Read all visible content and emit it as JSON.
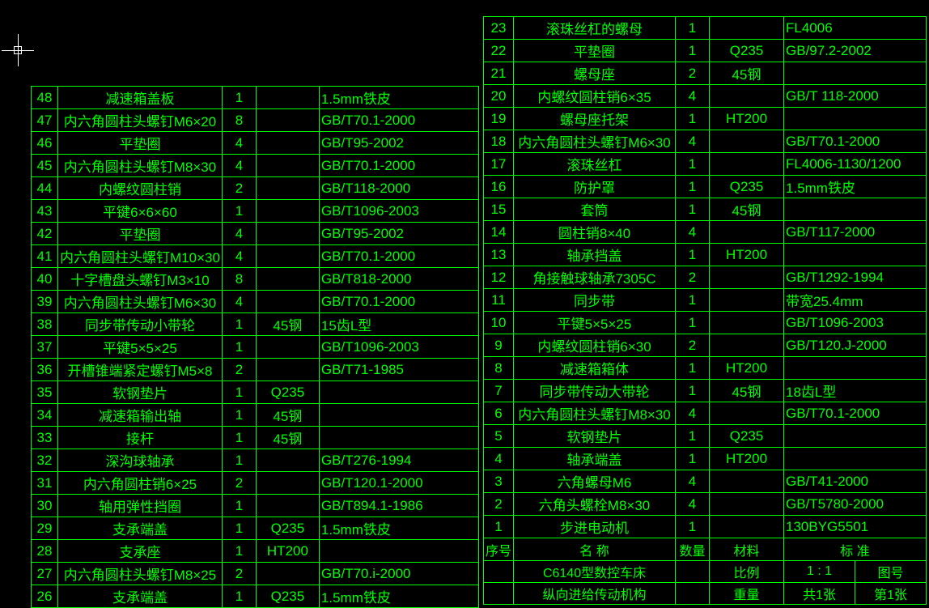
{
  "colors": {
    "background": "#000000",
    "foreground": "#00ff00",
    "crosshair": "#ffffff"
  },
  "leftTable": {
    "columns": [
      "idx",
      "name",
      "qty",
      "material",
      "standard"
    ],
    "rows": [
      {
        "idx": "48",
        "name": "减速箱盖板",
        "qty": "1",
        "mat": "",
        "std": "1.5mm铁皮"
      },
      {
        "idx": "47",
        "name": "内六角圆柱头螺钉M6×20",
        "qty": "8",
        "mat": "",
        "std": "GB/T70.1-2000"
      },
      {
        "idx": "46",
        "name": "平垫圈",
        "qty": "4",
        "mat": "",
        "std": "GB/T95-2002"
      },
      {
        "idx": "45",
        "name": "内六角圆柱头螺钉M8×30",
        "qty": "4",
        "mat": "",
        "std": "GB/T70.1-2000"
      },
      {
        "idx": "44",
        "name": "内螺纹圆柱销",
        "qty": "2",
        "mat": "",
        "std": "GB/T118-2000"
      },
      {
        "idx": "43",
        "name": "平键6×6×60",
        "qty": "1",
        "mat": "",
        "std": "GB/T1096-2003"
      },
      {
        "idx": "42",
        "name": "平垫圈",
        "qty": "4",
        "mat": "",
        "std": "GB/T95-2002"
      },
      {
        "idx": "41",
        "name": "内六角圆柱头螺钉M10×30",
        "qty": "4",
        "mat": "",
        "std": "GB/T70.1-2000"
      },
      {
        "idx": "40",
        "name": "十字槽盘头螺钉M3×10",
        "qty": "8",
        "mat": "",
        "std": "GB/T818-2000"
      },
      {
        "idx": "39",
        "name": "内六角圆柱头螺钉M6×30",
        "qty": "4",
        "mat": "",
        "std": "GB/T70.1-2000"
      },
      {
        "idx": "38",
        "name": "同步带传动小带轮",
        "qty": "1",
        "mat": "45钢",
        "std": "15齿L型"
      },
      {
        "idx": "37",
        "name": "平键5×5×25",
        "qty": "1",
        "mat": "",
        "std": "GB/T1096-2003"
      },
      {
        "idx": "36",
        "name": "开槽锥端紧定螺钉M5×8",
        "qty": "2",
        "mat": "",
        "std": "GB/T71-1985"
      },
      {
        "idx": "35",
        "name": "软钢垫片",
        "qty": "1",
        "mat": "Q235",
        "std": ""
      },
      {
        "idx": "34",
        "name": "减速箱输出轴",
        "qty": "1",
        "mat": "45钢",
        "std": ""
      },
      {
        "idx": "33",
        "name": "接杆",
        "qty": "1",
        "mat": "45钢",
        "std": ""
      },
      {
        "idx": "32",
        "name": "深沟球轴承",
        "qty": "1",
        "mat": "",
        "std": "GB/T276-1994"
      },
      {
        "idx": "31",
        "name": "内六角圆柱销6×25",
        "qty": "2",
        "mat": "",
        "std": "GB/T120.1-2000"
      },
      {
        "idx": "30",
        "name": "轴用弹性挡圈",
        "qty": "1",
        "mat": "",
        "std": "GB/T894.1-1986"
      },
      {
        "idx": "29",
        "name": "支承端盖",
        "qty": "1",
        "mat": "Q235",
        "std": "1.5mm铁皮"
      },
      {
        "idx": "28",
        "name": "支承座",
        "qty": "1",
        "mat": "HT200",
        "std": ""
      },
      {
        "idx": "27",
        "name": "内六角圆柱头螺钉M8×25",
        "qty": "2",
        "mat": "",
        "std": "GB/T70.i-2000"
      },
      {
        "idx": "26",
        "name": "支承端盖",
        "qty": "1",
        "mat": "Q235",
        "std": "1.5mm铁皮"
      }
    ]
  },
  "rightTable": {
    "columns": [
      "idx",
      "name",
      "qty",
      "material",
      "standard"
    ],
    "rows": [
      {
        "idx": "23",
        "name": "滚珠丝杠的螺母",
        "qty": "1",
        "mat": "",
        "std": "FL4006"
      },
      {
        "idx": "22",
        "name": "平垫圈",
        "qty": "1",
        "mat": "Q235",
        "std": "GB/97.2-2002"
      },
      {
        "idx": "21",
        "name": "螺母座",
        "qty": "2",
        "mat": "45钢",
        "std": ""
      },
      {
        "idx": "20",
        "name": "内螺纹圆柱销6×35",
        "qty": "4",
        "mat": "",
        "std": "GB/T 118-2000"
      },
      {
        "idx": "19",
        "name": "螺母座托架",
        "qty": "1",
        "mat": "HT200",
        "std": ""
      },
      {
        "idx": "18",
        "name": "内六角圆柱头螺钉M6×30",
        "qty": "4",
        "mat": "",
        "std": "GB/T70.1-2000"
      },
      {
        "idx": "17",
        "name": "滚珠丝杠",
        "qty": "1",
        "mat": "",
        "std": "FL4006-1130/1200"
      },
      {
        "idx": "16",
        "name": "防护罩",
        "qty": "1",
        "mat": "Q235",
        "std": "1.5mm铁皮"
      },
      {
        "idx": "15",
        "name": "套筒",
        "qty": "1",
        "mat": "45钢",
        "std": ""
      },
      {
        "idx": "14",
        "name": "圆柱销8×40",
        "qty": "4",
        "mat": "",
        "std": "GB/T117-2000"
      },
      {
        "idx": "13",
        "name": "轴承挡盖",
        "qty": "1",
        "mat": "HT200",
        "std": ""
      },
      {
        "idx": "12",
        "name": "角接触球轴承7305C",
        "qty": "2",
        "mat": "",
        "std": "GB/T1292-1994"
      },
      {
        "idx": "11",
        "name": "同步带",
        "qty": "1",
        "mat": "",
        "std": "带宽25.4mm"
      },
      {
        "idx": "10",
        "name": "平键5×5×25",
        "qty": "1",
        "mat": "",
        "std": "GB/T1096-2003"
      },
      {
        "idx": "9",
        "name": "内螺纹圆柱销6×30",
        "qty": "2",
        "mat": "",
        "std": "GB/T120.J-2000"
      },
      {
        "idx": "8",
        "name": "减速箱箱体",
        "qty": "1",
        "mat": "HT200",
        "std": ""
      },
      {
        "idx": "7",
        "name": "同步带传动大带轮",
        "qty": "1",
        "mat": "45钢",
        "std": "18齿L型"
      },
      {
        "idx": "6",
        "name": "内六角圆柱头螺钉M8×30",
        "qty": "4",
        "mat": "",
        "std": "GB/T70.1-2000"
      },
      {
        "idx": "5",
        "name": "软钢垫片",
        "qty": "1",
        "mat": "Q235",
        "std": ""
      },
      {
        "idx": "4",
        "name": "轴承端盖",
        "qty": "1",
        "mat": "HT200",
        "std": ""
      },
      {
        "idx": "3",
        "name": "六角螺母M6",
        "qty": "4",
        "mat": "",
        "std": "GB/T41-2000"
      },
      {
        "idx": "2",
        "name": "六角头螺栓M8×30",
        "qty": "4",
        "mat": "",
        "std": "GB/T5780-2000"
      },
      {
        "idx": "1",
        "name": "步进电动机",
        "qty": "1",
        "mat": "",
        "std": "130BYG5501"
      }
    ],
    "header": {
      "idx": "序号",
      "name": "名    称",
      "qty": "数量",
      "mat": "材料",
      "std": "标    准"
    },
    "titleBlock": {
      "title": "C6140型数控车床",
      "subtitle": "纵向进给传动机构",
      "ratio_label": "比例",
      "ratio": "1 : 1",
      "drawing_label": "图号",
      "weight_label": "重量",
      "sheet_label": "共1张",
      "sheet2": "第1张"
    }
  }
}
